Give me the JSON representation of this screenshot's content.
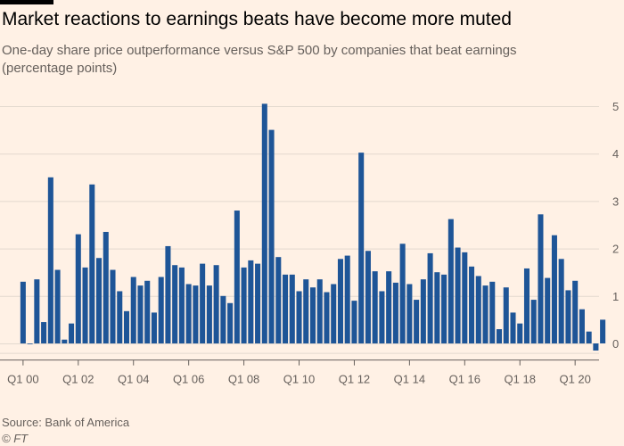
{
  "page": {
    "title": "Market reactions to earnings beats have become more muted",
    "subtitle": "One-day share price outperformance versus S&P 500 by companies that beat earnings (percentage points)",
    "source": "Source: Bank of America",
    "credit": "© FT"
  },
  "colors": {
    "bar": "#1e5597",
    "grid": "#e3d9cf",
    "axis": "#66605c"
  },
  "chart_data": {
    "type": "bar",
    "title": "Market reactions to earnings beats have become more muted",
    "subtitle": "One-day share price outperformance versus S&P 500 by companies that beat earnings (percentage points)",
    "ylim": [
      -0.2,
      5.2
    ],
    "yticks": [
      0,
      1,
      2,
      3,
      4,
      5
    ],
    "x_tick_labels": [
      "Q1 00",
      "Q1 02",
      "Q1 04",
      "Q1 06",
      "Q1 08",
      "Q1 10",
      "Q1 12",
      "Q1 14",
      "Q1 16",
      "Q1 18",
      "Q1 20"
    ],
    "x_tick_every": 8,
    "grid": true,
    "values": [
      1.3,
      0.0,
      1.35,
      0.45,
      3.5,
      1.55,
      0.08,
      0.42,
      2.3,
      1.6,
      3.35,
      1.8,
      2.35,
      1.55,
      1.1,
      0.68,
      1.4,
      1.22,
      1.32,
      0.65,
      1.4,
      2.05,
      1.65,
      1.6,
      1.25,
      1.22,
      1.68,
      1.22,
      1.65,
      1.0,
      0.85,
      2.8,
      1.6,
      1.75,
      1.68,
      5.05,
      4.5,
      1.82,
      1.45,
      1.45,
      1.1,
      1.35,
      1.18,
      1.35,
      1.08,
      1.25,
      1.78,
      1.85,
      0.9,
      4.02,
      1.95,
      1.52,
      1.1,
      1.52,
      1.28,
      2.1,
      1.25,
      0.92,
      1.35,
      1.9,
      1.5,
      1.45,
      2.62,
      2.02,
      1.92,
      1.62,
      1.42,
      1.22,
      1.3,
      0.3,
      1.18,
      0.65,
      0.42,
      1.58,
      0.92,
      2.72,
      1.38,
      2.28,
      1.78,
      1.12,
      1.32,
      0.72,
      0.25,
      -0.15,
      0.5
    ]
  }
}
